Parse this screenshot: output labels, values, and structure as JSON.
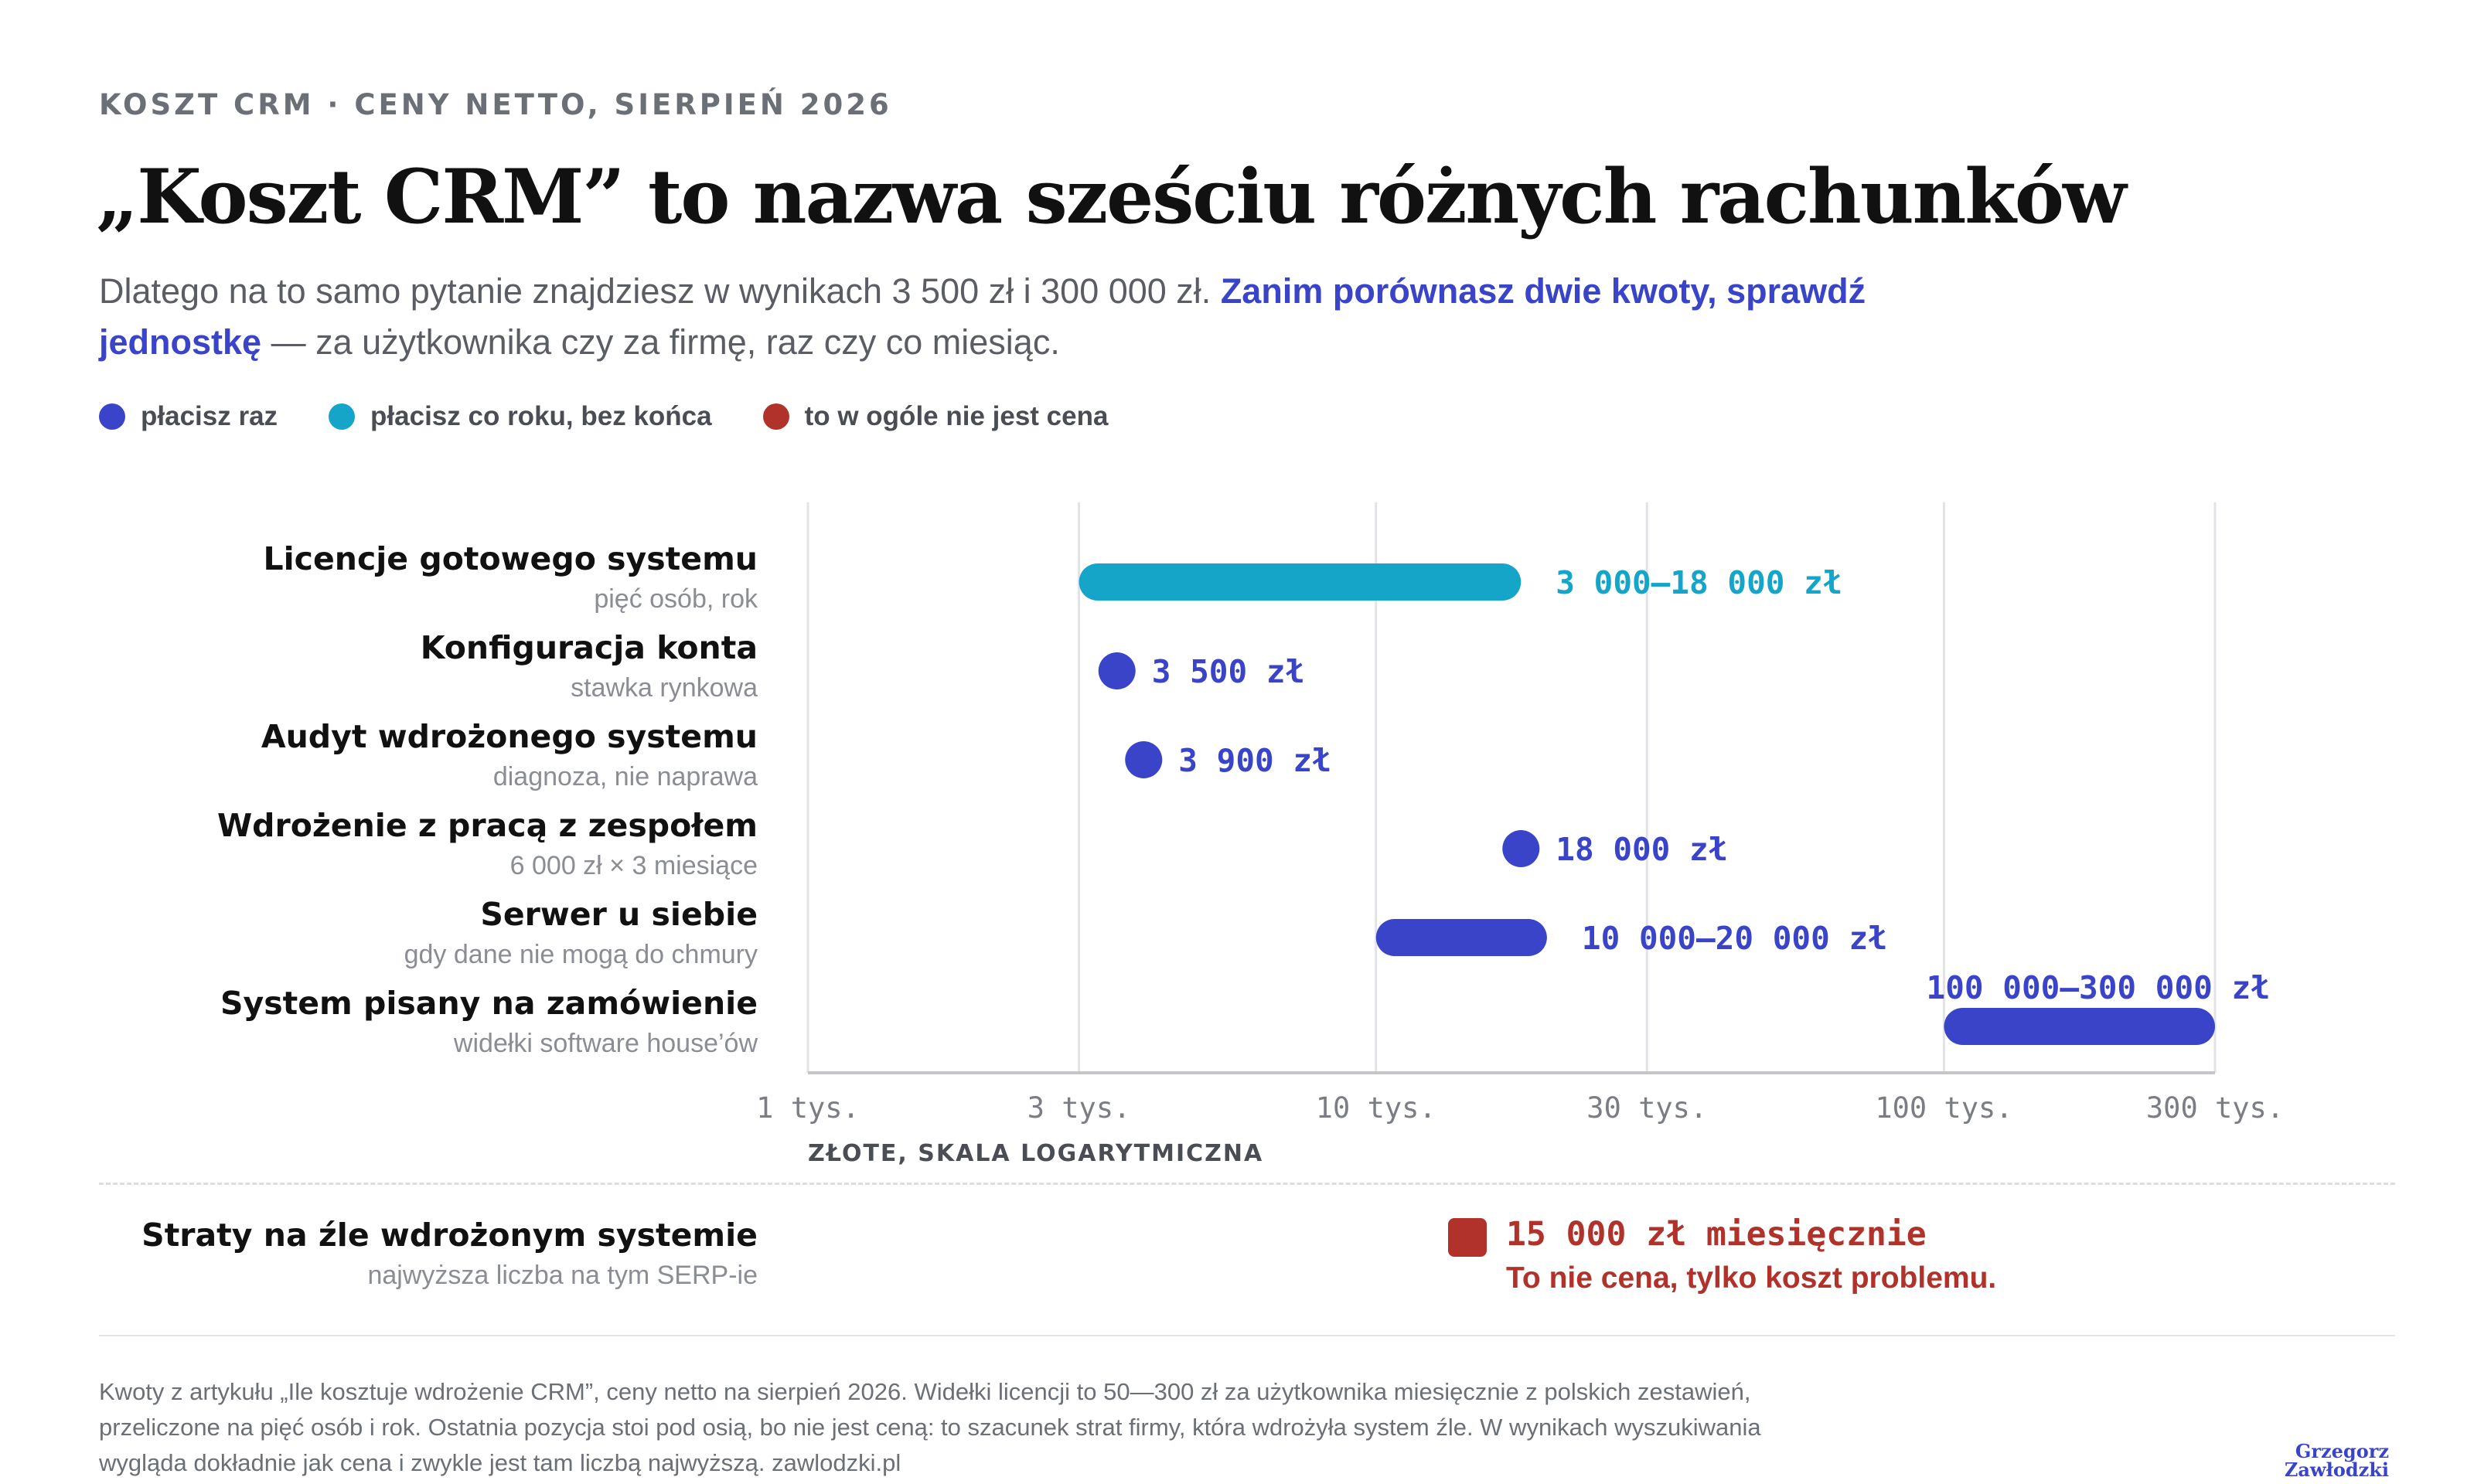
{
  "header": {
    "kicker": "KOSZT CRM · CENY NETTO, SIERPIEŃ 2026",
    "title": "„Koszt CRM” to nazwa sześciu różnych rachunków",
    "subtitle_plain_1": "Dlatego na to samo pytanie znajdziesz w wynikach 3 500 zł i 300 000 zł. ",
    "subtitle_highlight": "Zanim porównasz dwie kwoty, sprawdź jednostkę",
    "subtitle_plain_2": " — za użytkownika czy za firmę, raz czy co miesiąc."
  },
  "legend": [
    {
      "label": "płacisz raz",
      "color": "#3a44c8"
    },
    {
      "label": "płacisz co roku, bez końca",
      "color": "#14a5c9"
    },
    {
      "label": "to w ogóle nie jest cena",
      "color": "#b0322a"
    }
  ],
  "colors": {
    "once": "#3a44c8",
    "yearly": "#14a5c9",
    "not_price": "#b0322a",
    "grid": "#e2e3e6",
    "axis": "#c4c6ca"
  },
  "chart_data": {
    "type": "range-dot",
    "x_scale": "log",
    "xlim": [
      1000,
      300000
    ],
    "xticks": [
      1000,
      3000,
      10000,
      30000,
      100000,
      300000
    ],
    "xtick_labels": [
      "1 tys.",
      "3 tys.",
      "10 tys.",
      "30 tys.",
      "100 tys.",
      "300 tys."
    ],
    "xlabel": "ZŁOTE, SKALA LOGARYTMICZNA",
    "grid": true,
    "rows": [
      {
        "title": "Licencje gotowego systemu",
        "subtitle": "pięć osób, rok",
        "kind": "range",
        "min": 3000,
        "max": 18000,
        "category": "yearly",
        "label": "3 000–18 000 zł",
        "label_pos": "right"
      },
      {
        "title": "Konfiguracja konta",
        "subtitle": "stawka rynkowa",
        "kind": "point",
        "value": 3500,
        "category": "once",
        "label": "3 500 zł",
        "label_pos": "right"
      },
      {
        "title": "Audyt wdrożonego systemu",
        "subtitle": "diagnoza, nie naprawa",
        "kind": "point",
        "value": 3900,
        "category": "once",
        "label": "3 900 zł",
        "label_pos": "right"
      },
      {
        "title": "Wdrożenie z pracą z zespołem",
        "subtitle": "6 000 zł × 3 miesiące",
        "kind": "point",
        "value": 18000,
        "category": "once",
        "label": "18 000 zł",
        "label_pos": "right"
      },
      {
        "title": "Serwer u siebie",
        "subtitle": "gdy dane nie mogą do chmury",
        "kind": "range",
        "min": 10000,
        "max": 20000,
        "category": "once",
        "label": "10 000–20 000 zł",
        "label_pos": "right"
      },
      {
        "title": "System pisany na zamówienie",
        "subtitle": "widełki software house’ów",
        "kind": "range",
        "min": 100000,
        "max": 300000,
        "category": "once",
        "label": "100 000–300 000 zł",
        "label_pos": "above"
      }
    ]
  },
  "losses": {
    "title": "Straty na źle wdrożonym systemie",
    "subtitle": "najwyższa liczba na tym SERP-ie",
    "value": "15 000 zł miesięcznie",
    "note": "To nie cena, tylko koszt problemu."
  },
  "footnote": "Kwoty z artykułu „Ile kosztuje wdrożenie CRM”, ceny netto na sierpień 2026. Widełki licencji to 50—300 zł za użytkownika miesięcznie z polskich zestawień, przeliczone na pięć osób i rok. Ostatnia pozycja stoi pod osią, bo nie jest ceną: to szacunek strat firmy, która wdrożyła system źle. W wynikach wyszukiwania wygląda dokładnie jak cena i zwykle jest tam liczbą najwyższą. zawlodzki.pl",
  "logo": {
    "line1": "Grzegorz",
    "line2": "Zawłodzki"
  }
}
